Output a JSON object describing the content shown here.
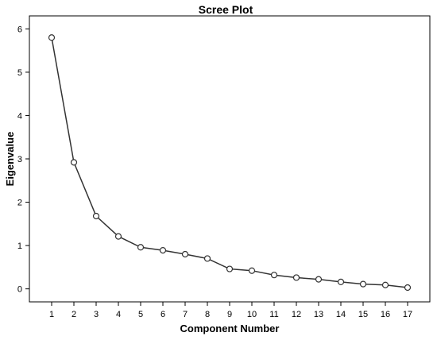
{
  "chart_data": {
    "type": "line",
    "title": "Scree Plot",
    "xlabel": "Component Number",
    "ylabel": "Eigenvalue",
    "x": [
      1,
      2,
      3,
      4,
      5,
      6,
      7,
      8,
      9,
      10,
      11,
      12,
      13,
      14,
      15,
      16,
      17
    ],
    "values": [
      5.8,
      2.92,
      1.68,
      1.21,
      0.96,
      0.89,
      0.8,
      0.7,
      0.46,
      0.42,
      0.32,
      0.26,
      0.22,
      0.16,
      0.11,
      0.09,
      0.03
    ],
    "xlim": [
      0,
      18
    ],
    "ylim": [
      -0.3,
      6.3
    ],
    "yticks": [
      0,
      1,
      2,
      3,
      4,
      5,
      6
    ],
    "grid": false,
    "marker": "open-circle",
    "line_color": "#333333"
  }
}
